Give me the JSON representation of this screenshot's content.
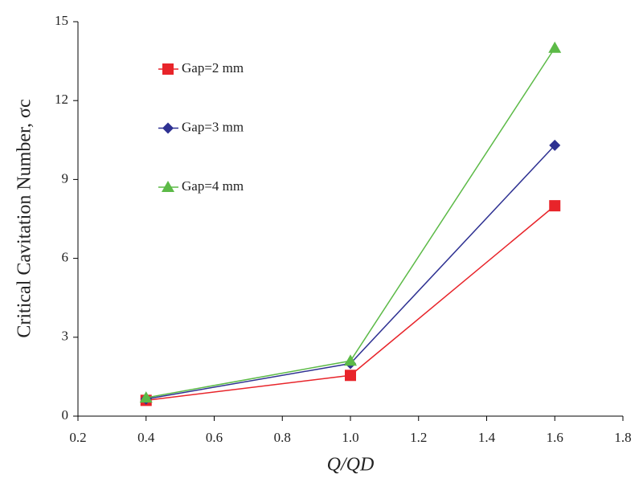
{
  "chart_data": {
    "type": "line",
    "x_label": "Q/QD",
    "y_label": "Critical Cavitation Number, σc",
    "xlim": [
      0.2,
      1.8
    ],
    "xticks": [
      0.2,
      0.4,
      0.6,
      0.8,
      {
        "value": 1,
        "label": "1.0"
      },
      1.2,
      1.4,
      1.6,
      1.8
    ],
    "ylim": [
      0,
      15
    ],
    "yticks": [
      0,
      3,
      6,
      9,
      12,
      15
    ],
    "grid": false,
    "legend": "upper left",
    "series": [
      {
        "name": "Gap=2 mm",
        "color": "#e8242a",
        "marker": "square",
        "x": [
          0.4,
          1.0,
          1.6
        ],
        "values": [
          0.6,
          1.55,
          8.0
        ]
      },
      {
        "name": "Gap=3 mm",
        "color": "#2e3192",
        "marker": "diamond",
        "x": [
          0.4,
          1.0,
          1.6
        ],
        "values": [
          0.65,
          2.0,
          10.3
        ]
      },
      {
        "name": "Gap=4 mm",
        "color": "#5cba47",
        "marker": "triangle",
        "x": [
          0.4,
          1.0,
          1.6
        ],
        "values": [
          0.7,
          2.1,
          14.0
        ]
      }
    ]
  }
}
